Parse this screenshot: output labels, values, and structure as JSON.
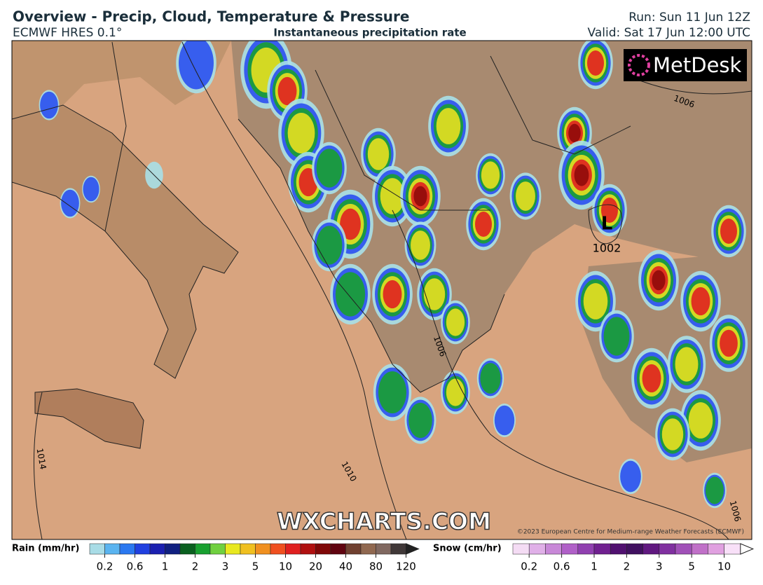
{
  "header": {
    "title": "Overview - Precip, Cloud, Temperature & Pressure",
    "model": "ECMWF HRES 0.1°",
    "subtitle": "Instantaneous precipitation rate",
    "run": "Run: Sun 11 Jun 12Z",
    "valid": "Valid: Sat 17 Jun 12:00 UTC"
  },
  "map": {
    "logo": "MetDesk",
    "low_symbol": "L",
    "low_pressure": "1002",
    "isobar_labels": [
      "1006",
      "1006",
      "1006",
      "1010",
      "1014"
    ],
    "watermark": "WXCHARTS.COM",
    "copyright": "©2023 European Centre for Medium-range Weather Forecasts (ECMWF)"
  },
  "legend": {
    "rain": {
      "label": "Rain (mm/hr)",
      "ticks": [
        0.2,
        0.6,
        1,
        2,
        3,
        5,
        10,
        20,
        40,
        80,
        120
      ],
      "colors": [
        "#a8dce6",
        "#5ab4f0",
        "#2a78f0",
        "#2040e0",
        "#1a20b0",
        "#102080",
        "#0a6020",
        "#18a030",
        "#70d040",
        "#e8e820",
        "#f0c020",
        "#f09020",
        "#f05020",
        "#e02020",
        "#b01010",
        "#800808",
        "#600410",
        "#704030",
        "#906850",
        "#806860",
        "#403838"
      ]
    },
    "snow": {
      "label": "Snow (cm/hr)",
      "ticks": [
        0.2,
        0.6,
        1,
        2,
        3,
        5,
        10
      ],
      "colors": [
        "#f4dcf4",
        "#e0b0e8",
        "#c888d8",
        "#b060c8",
        "#9040b0",
        "#702090",
        "#501070",
        "#401060",
        "#601880",
        "#8030a0",
        "#a050b8",
        "#c070c8",
        "#e0a0e0",
        "#f8e0f8"
      ]
    }
  }
}
